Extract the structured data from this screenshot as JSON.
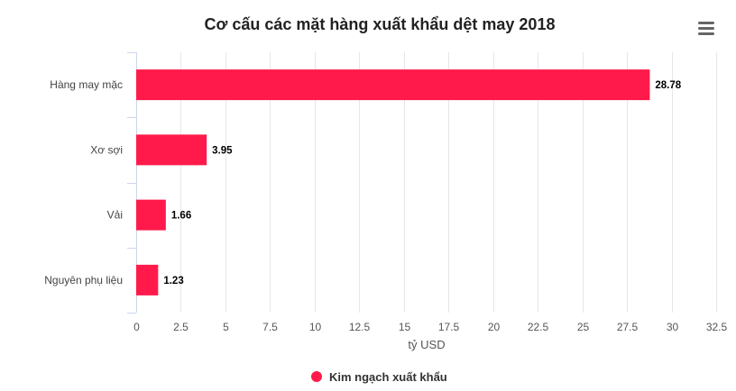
{
  "chart_data": {
    "type": "bar",
    "orientation": "horizontal",
    "title": "Cơ cấu các mặt hàng xuất khẩu dệt may 2018",
    "categories": [
      "Hàng may mặc",
      "Xơ sợi",
      "Vải",
      "Nguyên phụ liệu"
    ],
    "series": [
      {
        "name": "Kim ngạch xuất khẩu",
        "values": [
          28.78,
          3.95,
          1.66,
          1.23
        ],
        "color": "#ff1a4b"
      }
    ],
    "xlabel": "tỷ USD",
    "ylabel": "",
    "xlim": [
      0,
      32.5
    ],
    "xticks": [
      0,
      2.5,
      5,
      7.5,
      10,
      12.5,
      15,
      17.5,
      20,
      22.5,
      25,
      27.5,
      30,
      32.5
    ],
    "xtick_labels": [
      "0",
      "2.5",
      "5",
      "7.5",
      "10",
      "12.5",
      "15",
      "17.5",
      "20",
      "22.5",
      "25",
      "27.5",
      "30",
      "32.5"
    ],
    "value_labels": [
      "28.78",
      "3.95",
      "1.66",
      "1.23"
    ],
    "grid": true,
    "legend_position": "bottom-center"
  },
  "menu_icon": "hamburger-menu-icon"
}
